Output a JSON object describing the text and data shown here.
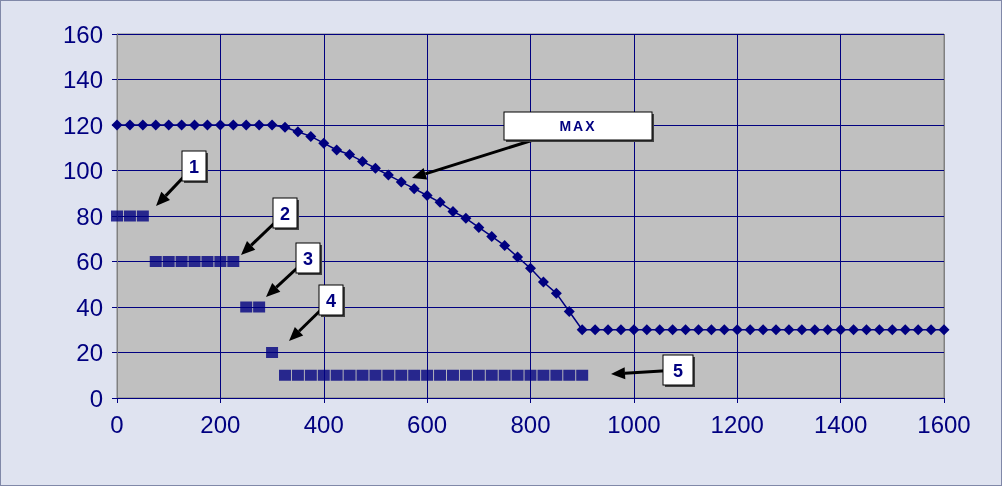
{
  "chart_data": {
    "type": "line",
    "xlim": [
      0,
      1600
    ],
    "xticks": [
      0,
      200,
      400,
      600,
      800,
      1000,
      1200,
      1400,
      1600
    ],
    "ylim": [
      0,
      160
    ],
    "yticks": [
      0,
      20,
      40,
      60,
      80,
      100,
      120,
      140,
      160
    ],
    "grid": true,
    "annotations": [
      "1",
      "2",
      "3",
      "4",
      "5",
      "MAX"
    ],
    "series": [
      {
        "color": "#000080",
        "marker": "diamond",
        "x": [
          0,
          25,
          50,
          75,
          100,
          125,
          150,
          175,
          200,
          225,
          250,
          275,
          300,
          325,
          350,
          375,
          400,
          425,
          450,
          475,
          500,
          525,
          550,
          575,
          600,
          625,
          650,
          675,
          700,
          725,
          750,
          775,
          800,
          825,
          850,
          875,
          900,
          925,
          950,
          975,
          1000,
          1025,
          1050,
          1075,
          1100,
          1125,
          1150,
          1175,
          1200,
          1225,
          1250,
          1275,
          1300,
          1325,
          1350,
          1375,
          1400,
          1425,
          1450,
          1475,
          1500,
          1525,
          1550,
          1575,
          1600
        ],
        "values": [
          120,
          120,
          120,
          120,
          120,
          120,
          120,
          120,
          120,
          120,
          120,
          120,
          120,
          119,
          117,
          115,
          112,
          109,
          107,
          104,
          101,
          98,
          95,
          92,
          89,
          86,
          82,
          79,
          75,
          71,
          67,
          62,
          57,
          51,
          46,
          38,
          30,
          30,
          30,
          30,
          30,
          30,
          30,
          30,
          30,
          30,
          30,
          30,
          30,
          30,
          30,
          30,
          30,
          30,
          30,
          30,
          30,
          30,
          30,
          30,
          30,
          30,
          30,
          30,
          30
        ]
      },
      {
        "type": "scatter",
        "color": "#000080",
        "marker": "square",
        "x": [
          0,
          25,
          50,
          75,
          100,
          125,
          150,
          175,
          200,
          225,
          250,
          275,
          300,
          325,
          350,
          375,
          400,
          425,
          450,
          475,
          500,
          525,
          550,
          575,
          600,
          625,
          650,
          675,
          700,
          725,
          750,
          775,
          800,
          825,
          850,
          875,
          900
        ],
        "values": [
          80,
          80,
          80,
          60,
          60,
          60,
          60,
          60,
          60,
          60,
          40,
          40,
          20,
          10,
          10,
          10,
          10,
          10,
          10,
          10,
          10,
          10,
          10,
          10,
          10,
          10,
          10,
          10,
          10,
          10,
          10,
          10,
          10,
          10,
          10,
          10,
          10
        ]
      }
    ]
  }
}
